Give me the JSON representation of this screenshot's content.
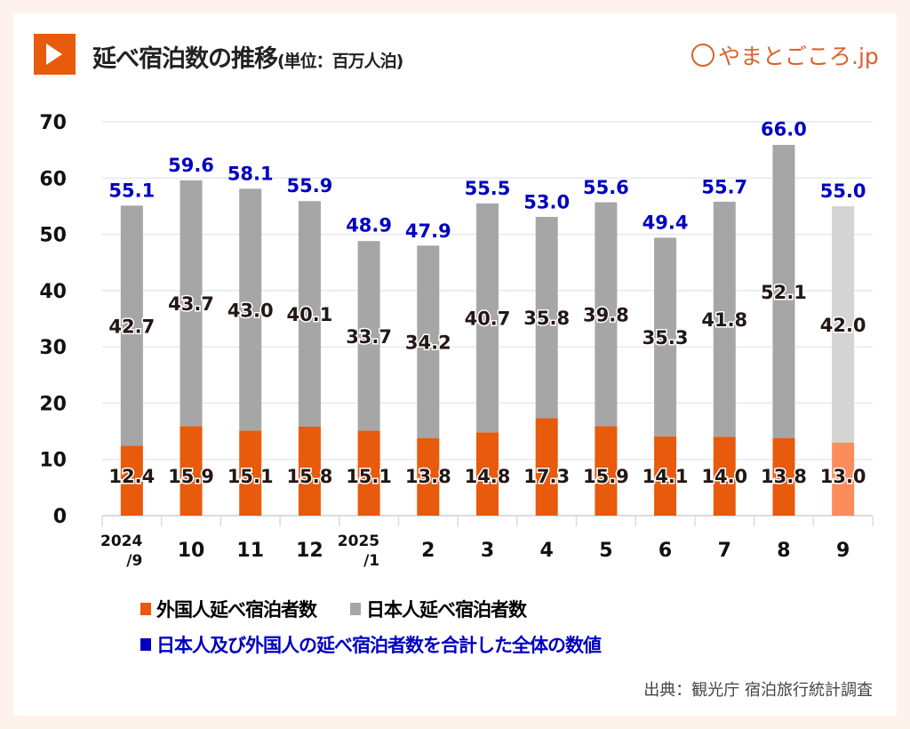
{
  "header": {
    "title": "延べ宿泊数の推移",
    "unit": "(単位：百万人泊)",
    "logo": "やまとごころ.jp"
  },
  "colors": {
    "foreign": "#e85a0c",
    "japanese": "#a6a6a6",
    "foreign_prelim": "#fb8c5c",
    "japanese_prelim": "#d4d4d4",
    "total_label": "#0000c0",
    "accent": "#e85a0c"
  },
  "chart_data": {
    "type": "bar",
    "stacked": true,
    "categories": [
      "2024/9",
      "10",
      "11",
      "12",
      "2025/1",
      "2",
      "3",
      "4",
      "5",
      "6",
      "7",
      "8",
      "9"
    ],
    "series": [
      {
        "name": "外国人延べ宿泊者数",
        "values": [
          12.4,
          15.9,
          15.1,
          15.8,
          15.1,
          13.8,
          14.8,
          17.3,
          15.9,
          14.1,
          14.0,
          13.8,
          13.0
        ]
      },
      {
        "name": "日本人延べ宿泊者数",
        "values": [
          42.7,
          43.7,
          43.0,
          40.1,
          33.7,
          34.2,
          40.7,
          35.8,
          39.8,
          35.3,
          41.8,
          52.1,
          42.0
        ]
      }
    ],
    "totals": {
      "name": "日本人及び外国人の延べ宿泊者数を合計した全体の数値",
      "values": [
        55.1,
        59.6,
        58.1,
        55.9,
        48.9,
        47.9,
        55.5,
        53.0,
        55.6,
        49.4,
        55.7,
        66.0,
        55.0
      ]
    },
    "ylim": [
      0,
      70
    ],
    "yticks": [
      0,
      10,
      20,
      30,
      40,
      50,
      60,
      70
    ],
    "grid": true,
    "legend": "bottom"
  },
  "source": "出典：観光庁 宿泊旅行統計調査"
}
